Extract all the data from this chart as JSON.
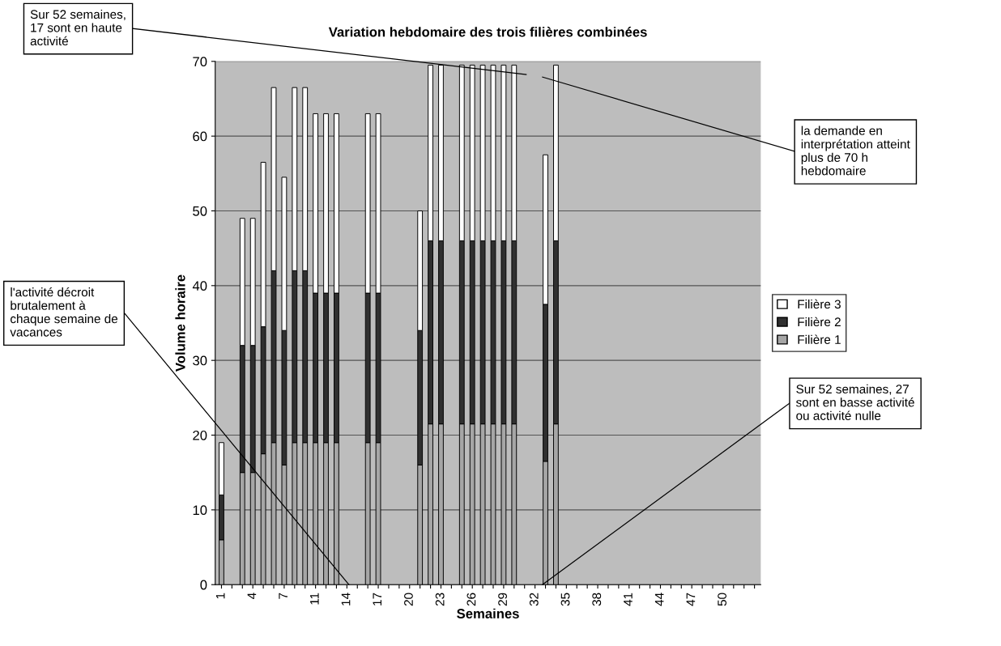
{
  "chart_data": {
    "type": "bar",
    "stacked": true,
    "title": "Variation hebdomaire des trois filières combinées",
    "xlabel": "Semaines",
    "ylabel": "Volume horaire",
    "categories": [
      "1",
      null,
      null,
      "4",
      null,
      null,
      "7",
      null,
      null,
      "11",
      null,
      null,
      "14",
      null,
      null,
      "17",
      null,
      null,
      "20",
      null,
      null,
      "23",
      null,
      null,
      "26",
      null,
      null,
      "29",
      null,
      null,
      "32",
      null,
      null,
      "35",
      null,
      null,
      "38",
      null,
      null,
      "41",
      null,
      null,
      "44",
      null,
      null,
      "47",
      null,
      null,
      "50",
      null,
      null,
      null
    ],
    "series": [
      {
        "name": "Filière 1",
        "color": "#a6a6a6",
        "values": [
          6,
          0,
          15,
          15,
          17.5,
          19,
          16,
          19,
          19,
          19,
          19,
          19,
          0,
          0,
          19,
          19,
          0,
          0,
          0,
          16,
          21.5,
          21.5,
          0,
          21.5,
          21.5,
          21.5,
          21.5,
          21.5,
          21.5,
          0,
          0,
          16.5,
          21.5,
          0,
          0,
          0,
          0,
          0,
          0,
          0,
          0,
          0,
          0,
          0,
          0,
          0,
          0,
          0,
          0,
          0,
          0,
          0
        ]
      },
      {
        "name": "Filière 2",
        "color": "#303030",
        "values": [
          6,
          0,
          17,
          17,
          17,
          23,
          18,
          23,
          23,
          20,
          20,
          20,
          0,
          0,
          20,
          20,
          0,
          0,
          0,
          18,
          24.5,
          24.5,
          0,
          24.5,
          24.5,
          24.5,
          24.5,
          24.5,
          24.5,
          0,
          0,
          21,
          24.5,
          0,
          0,
          0,
          0,
          0,
          0,
          0,
          0,
          0,
          0,
          0,
          0,
          0,
          0,
          0,
          0,
          0,
          0,
          0
        ]
      },
      {
        "name": "Filière 3",
        "color": "#ffffff",
        "values": [
          7,
          0,
          17,
          17,
          22,
          24.5,
          20.5,
          24.5,
          24.5,
          24,
          24,
          24,
          0,
          0,
          24,
          24,
          0,
          0,
          0,
          16,
          23.5,
          23.5,
          0,
          23.5,
          23.5,
          23.5,
          23.5,
          23.5,
          23.5,
          0,
          0,
          20,
          23.5,
          0,
          0,
          0,
          0,
          0,
          0,
          0,
          0,
          0,
          0,
          0,
          0,
          0,
          0,
          0,
          0,
          0,
          0,
          0
        ]
      }
    ],
    "ylim": [
      0,
      70
    ],
    "yticks": [
      0,
      10,
      20,
      30,
      40,
      50,
      60,
      70
    ],
    "grid": "y",
    "legend": "right",
    "annotations": [
      "Sur 52 semaines,\n17 sont en haute\nactivité",
      "la demande en\ninterprétation atteint\nplus de 70 h\nhebdomaire",
      "l'activité décroit\nbrutalement à\nchaque semaine de\nvacances",
      "Sur 52 semaines, 27\nsont en basse activité\nou activité nulle"
    ]
  }
}
